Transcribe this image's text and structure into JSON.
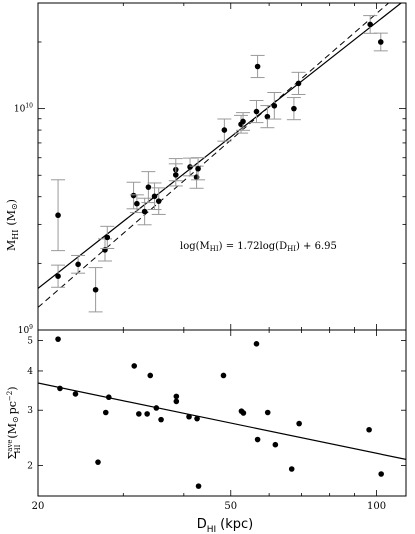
{
  "chart_data": [
    {
      "type": "scatter",
      "panel": "top",
      "ylabel": "M",
      "ylabel_sub": "HI",
      "ylabel_unit": "(M",
      "ylabel_unit_close": ")",
      "yscale": "log",
      "xscale": "log",
      "xlim": [
        20,
        115
      ],
      "ylim": [
        1000000000.0,
        30000000000.0
      ],
      "ytick_labels": [
        {
          "value": 1000000000.0,
          "mant": "10",
          "exp": "9"
        },
        {
          "value": 10000000000.0,
          "mant": "10",
          "exp": "10"
        }
      ],
      "annotation": "log(M",
      "annotation_sub1": "HI",
      "annotation_mid": ") = 1.72log(D",
      "annotation_sub2": "HI",
      "annotation_end": ") + 6.95",
      "fit_solid": {
        "slope": 1.72,
        "intercept": 6.95
      },
      "fit_dashed": {
        "slope": 1.9,
        "intercept": 6.63
      },
      "points": [
        {
          "x": 22.0,
          "y": 3300000000.0,
          "err": 0.16
        },
        {
          "x": 22.0,
          "y": 1750000000.0,
          "err": 0.05
        },
        {
          "x": 24.2,
          "y": 1980000000.0,
          "err": 0.04
        },
        {
          "x": 26.3,
          "y": 1520000000.0,
          "err": 0.1
        },
        {
          "x": 27.5,
          "y": 2300000000.0,
          "err": 0.05
        },
        {
          "x": 27.8,
          "y": 2620000000.0,
          "err": 0.05
        },
        {
          "x": 31.5,
          "y": 4050000000.0,
          "err": 0.06
        },
        {
          "x": 32.0,
          "y": 3720000000.0,
          "err": 0.04
        },
        {
          "x": 33.2,
          "y": 3430000000.0,
          "err": 0.06
        },
        {
          "x": 33.8,
          "y": 4420000000.0,
          "err": 0.07
        },
        {
          "x": 34.8,
          "y": 4020000000.0,
          "err": 0.06
        },
        {
          "x": 35.5,
          "y": 3820000000.0,
          "err": 0.06
        },
        {
          "x": 38.5,
          "y": 5300000000.0,
          "err": 0.05
        },
        {
          "x": 38.5,
          "y": 5020000000.0,
          "err": 0.05
        },
        {
          "x": 41.2,
          "y": 5450000000.0,
          "err": 0.04
        },
        {
          "x": 42.5,
          "y": 4900000000.0,
          "err": 0.05
        },
        {
          "x": 42.8,
          "y": 5350000000.0,
          "err": 0.05
        },
        {
          "x": 48.5,
          "y": 8000000000.0,
          "err": 0.05
        },
        {
          "x": 52.5,
          "y": 8500000000.0,
          "err": 0.04
        },
        {
          "x": 53.0,
          "y": 8750000000.0,
          "err": 0.04
        },
        {
          "x": 56.5,
          "y": 9700000000.0,
          "err": 0.05
        },
        {
          "x": 56.8,
          "y": 15500000000.0,
          "err": 0.05
        },
        {
          "x": 59.5,
          "y": 9200000000.0,
          "err": 0.05
        },
        {
          "x": 61.5,
          "y": 10300000000.0,
          "err": 0.06
        },
        {
          "x": 67.5,
          "y": 10000000000.0,
          "err": 0.05
        },
        {
          "x": 69.0,
          "y": 13000000000.0,
          "err": 0.05
        },
        {
          "x": 97.0,
          "y": 24000000000.0,
          "err": 0.04
        },
        {
          "x": 102.0,
          "y": 20000000000.0,
          "err": 0.04
        }
      ]
    },
    {
      "type": "scatter",
      "panel": "bottom",
      "xlabel": "D",
      "xlabel_sub": "HI",
      "xlabel_unit": "(kpc)",
      "ylabel": "Σ",
      "ylabel_sup": "ave",
      "ylabel_sub": "HI",
      "ylabel_unit": "(M",
      "ylabel_unit_mid": "pc",
      "ylabel_unit_exp": "−2",
      "ylabel_unit_close": ")",
      "xscale": "log",
      "yscale": "log",
      "xlim": [
        20,
        115
      ],
      "ylim": [
        1.6,
        5.4
      ],
      "xticks": [
        {
          "value": 20,
          "label": "20"
        },
        {
          "value": 50,
          "label": "50"
        },
        {
          "value": 100,
          "label": "100"
        }
      ],
      "yticks": [
        {
          "value": 2,
          "label": "2"
        },
        {
          "value": 3,
          "label": "3"
        },
        {
          "value": 4,
          "label": "4"
        },
        {
          "value": 5,
          "label": "5"
        }
      ],
      "fit": {
        "slope": -0.32,
        "intercept": 0.98
      },
      "points": [
        {
          "x": 22.0,
          "y": 5.05
        },
        {
          "x": 22.2,
          "y": 3.52
        },
        {
          "x": 23.9,
          "y": 3.38
        },
        {
          "x": 26.6,
          "y": 2.05
        },
        {
          "x": 27.6,
          "y": 2.95
        },
        {
          "x": 28.0,
          "y": 3.3
        },
        {
          "x": 31.6,
          "y": 4.15
        },
        {
          "x": 32.3,
          "y": 2.92
        },
        {
          "x": 33.6,
          "y": 2.92
        },
        {
          "x": 34.1,
          "y": 3.87
        },
        {
          "x": 35.1,
          "y": 3.05
        },
        {
          "x": 35.9,
          "y": 2.8
        },
        {
          "x": 38.6,
          "y": 3.2
        },
        {
          "x": 38.6,
          "y": 3.32
        },
        {
          "x": 41.0,
          "y": 2.86
        },
        {
          "x": 42.6,
          "y": 2.82
        },
        {
          "x": 42.9,
          "y": 1.72
        },
        {
          "x": 48.3,
          "y": 3.87
        },
        {
          "x": 52.6,
          "y": 2.98
        },
        {
          "x": 53.1,
          "y": 2.94
        },
        {
          "x": 56.5,
          "y": 4.88
        },
        {
          "x": 56.8,
          "y": 2.42
        },
        {
          "x": 59.6,
          "y": 2.95
        },
        {
          "x": 61.8,
          "y": 2.33
        },
        {
          "x": 66.8,
          "y": 1.95
        },
        {
          "x": 69.2,
          "y": 2.72
        },
        {
          "x": 96.5,
          "y": 2.6
        },
        {
          "x": 102.2,
          "y": 1.88
        }
      ]
    }
  ]
}
